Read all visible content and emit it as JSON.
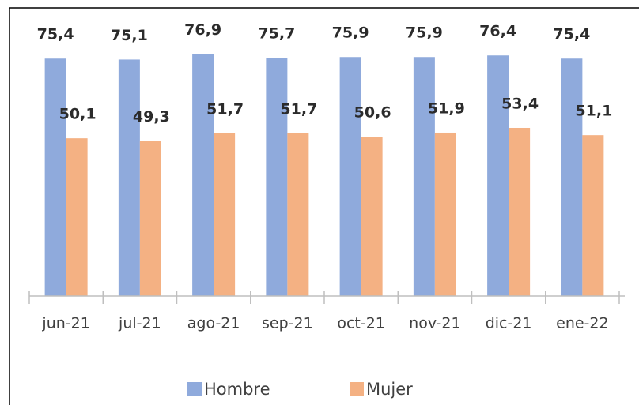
{
  "chart_data": {
    "type": "bar",
    "categories": [
      "jun-21",
      "jul-21",
      "ago-21",
      "sep-21",
      "oct-21",
      "nov-21",
      "dic-21",
      "ene-22"
    ],
    "series": [
      {
        "name": "Hombre",
        "color": "#8faadc",
        "values": [
          75.4,
          75.1,
          76.9,
          75.7,
          75.9,
          75.9,
          76.4,
          75.4
        ],
        "value_labels": [
          "75,4",
          "75,1",
          "76,9",
          "75,7",
          "75,9",
          "75,9",
          "76,4",
          "75,4"
        ]
      },
      {
        "name": "Mujer",
        "color": "#f4b183",
        "values": [
          50.1,
          49.3,
          51.7,
          51.7,
          50.6,
          51.9,
          53.4,
          51.1
        ],
        "value_labels": [
          "50,1",
          "49,3",
          "51,7",
          "51,7",
          "50,6",
          "51,9",
          "53,4",
          "51,1"
        ]
      }
    ],
    "ylim": [
      0,
      90
    ]
  }
}
